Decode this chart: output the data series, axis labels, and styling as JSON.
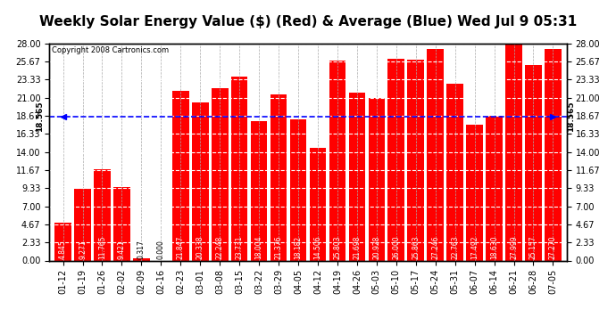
{
  "title": "Weekly Solar Energy Value ($) (Red) & Average (Blue) Wed Jul 9 05:31",
  "copyright": "Copyright 2008 Cartronics.com",
  "categories": [
    "01-12",
    "01-19",
    "01-26",
    "02-02",
    "02-09",
    "02-16",
    "02-23",
    "03-01",
    "03-08",
    "03-15",
    "03-22",
    "03-29",
    "04-05",
    "04-12",
    "04-19",
    "04-26",
    "05-03",
    "05-10",
    "05-17",
    "05-24",
    "05-31",
    "06-07",
    "06-14",
    "06-21",
    "06-28",
    "07-05"
  ],
  "values": [
    4.845,
    9.271,
    11.765,
    9.421,
    0.317,
    0.0,
    21.847,
    20.338,
    22.248,
    23.731,
    18.004,
    21.376,
    18.182,
    14.506,
    25.803,
    21.698,
    20.928,
    26.0,
    25.863,
    27.246,
    22.763,
    17.492,
    18.63,
    27.999,
    25.157,
    27.27
  ],
  "average": 18.565,
  "bar_color": "#ff0000",
  "avg_line_color": "#0000ff",
  "background_color": "#ffffff",
  "plot_bg_color": "#ffffff",
  "grid_color": "#aaaaaa",
  "yticks": [
    0.0,
    2.33,
    4.67,
    7.0,
    9.33,
    11.67,
    14.0,
    16.33,
    18.67,
    21.0,
    23.33,
    25.67,
    28.0
  ],
  "ylim": [
    0,
    28.0
  ],
  "avg_label": "18.565",
  "title_fontsize": 11,
  "copyright_fontsize": 6,
  "tick_fontsize": 7,
  "bar_label_fontsize": 5.5
}
